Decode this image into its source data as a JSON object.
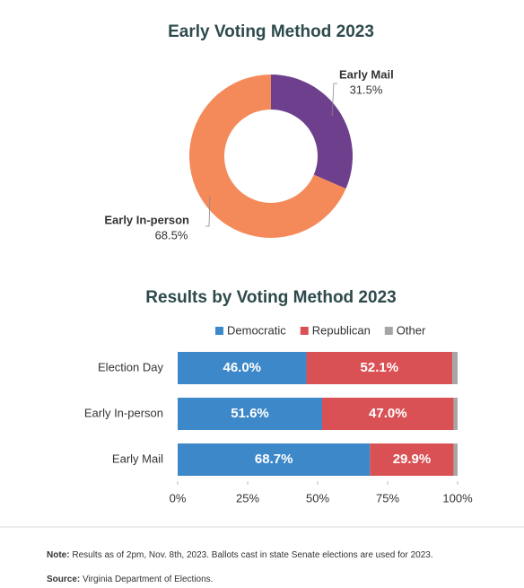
{
  "chart_data": [
    {
      "type": "pie",
      "title": "Early Voting Method 2023",
      "donut": true,
      "categories": [
        "Early Mail",
        "Early In-person"
      ],
      "values": [
        31.5,
        68.5
      ],
      "value_labels": [
        "31.5%",
        "68.5%"
      ],
      "colors": [
        "#6d3f8c",
        "#f48a5a"
      ]
    },
    {
      "type": "stacked-bar",
      "orientation": "horizontal",
      "title": "Results by Voting Method 2023",
      "categories": [
        "Election Day",
        "Early In-person",
        "Early Mail"
      ],
      "series": [
        {
          "name": "Democratic",
          "color": "#3d88c9",
          "values": [
            46.0,
            51.6,
            68.7
          ],
          "value_labels": [
            "46.0%",
            "51.6%",
            "68.7%"
          ]
        },
        {
          "name": "Republican",
          "color": "#d95155",
          "values": [
            52.1,
            47.0,
            29.9
          ],
          "value_labels": [
            "52.1%",
            "47.0%",
            "29.9%"
          ]
        },
        {
          "name": "Other",
          "color": "#a6a6a6",
          "values": [
            1.9,
            1.4,
            1.4
          ]
        }
      ],
      "xlim": [
        0,
        100
      ],
      "xticks": [
        {
          "value": 0,
          "label": "0%"
        },
        {
          "value": 25,
          "label": "25%"
        },
        {
          "value": 50,
          "label": "50%"
        },
        {
          "value": 75,
          "label": "75%"
        },
        {
          "value": 100,
          "label": "100%"
        }
      ],
      "legend": "top"
    }
  ],
  "notes": [
    {
      "label": "Note:",
      "text": "Results as of 2pm, Nov. 8th, 2023. Ballots cast in state Senate elections are used for 2023."
    },
    {
      "label": "Source:",
      "text": "Virginia Department of Elections."
    }
  ]
}
